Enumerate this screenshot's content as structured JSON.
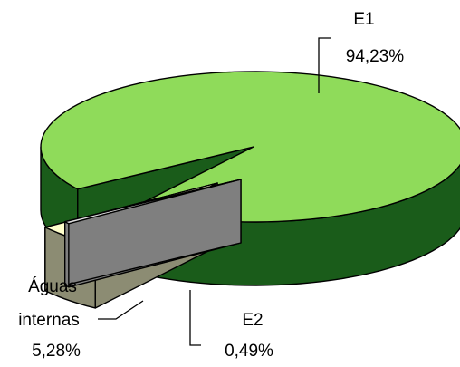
{
  "chart_data": {
    "type": "pie",
    "style": "3d-exploded",
    "title": "",
    "slices": [
      {
        "name": "E1",
        "value": 94.23,
        "value_label": "94,23%",
        "top_color": "#8fdb5a",
        "side_color": "#1a5c1a"
      },
      {
        "name": "Águas internas",
        "name_line1": "Águas",
        "name_line2": "internas",
        "value": 5.28,
        "value_label": "5,28%",
        "top_color": "#ffffcc",
        "side_color": "#8c8c73"
      },
      {
        "name": "E2",
        "value": 0.49,
        "value_label": "0,49%",
        "top_color": "#e0e0e0",
        "side_color": "#7f7f7f"
      }
    ]
  }
}
